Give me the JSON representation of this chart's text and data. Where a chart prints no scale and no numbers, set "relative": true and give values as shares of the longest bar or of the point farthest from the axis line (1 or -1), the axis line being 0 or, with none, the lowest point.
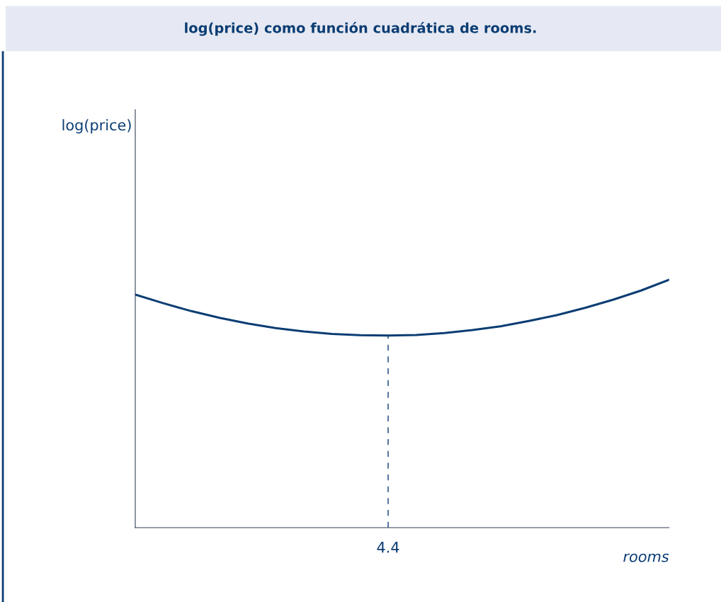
{
  "chart_data": {
    "type": "line",
    "title": "log(price) como función cuadrática de rooms.",
    "xlabel": "rooms",
    "relative": true,
    "categories": [
      null,
      null,
      null,
      null,
      null,
      null,
      null,
      null,
      null,
      null,
      null,
      null,
      null,
      null,
      null,
      null,
      null,
      null,
      null,
      null
    ],
    "series": [
      {
        "color": "#0b3d73",
        "values": [
          0.94,
          0.905,
          0.873,
          0.846,
          0.823,
          0.805,
          0.791,
          0.781,
          0.776,
          0.775,
          0.777,
          0.785,
          0.797,
          0.812,
          0.833,
          0.857,
          0.886,
          0.919,
          0.956,
          1.0
        ]
      }
    ],
    "annotations": [
      "log(price)",
      "4.4"
    ],
    "grid": false,
    "line_style": "solid"
  }
}
